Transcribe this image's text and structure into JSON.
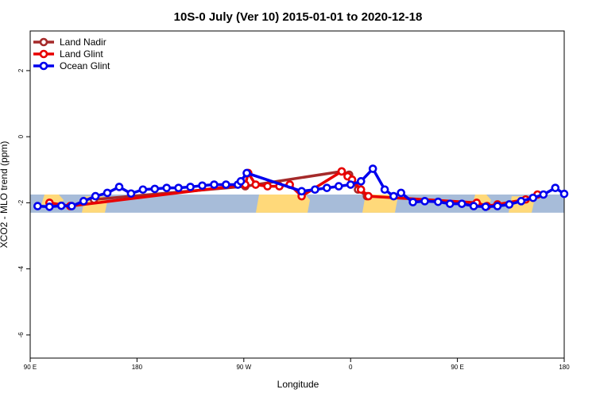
{
  "chart_data": {
    "type": "line",
    "title": "10S-0 July (Ver 10)   2015-01-01 to 2020-12-18",
    "xlabel": "Longitude",
    "ylabel": "XCO2 - MLO trend (ppm)",
    "xlim": [
      90,
      450
    ],
    "ylim": [
      -6.7,
      3.2
    ],
    "x_ticks": [
      {
        "value": 90,
        "label": "90 E"
      },
      {
        "value": 162,
        "label": "180"
      },
      {
        "value": 234,
        "label": "90 W"
      },
      {
        "value": 306,
        "label": "0"
      },
      {
        "value": 378,
        "label": "90 E"
      },
      {
        "value": 450,
        "label": "180"
      }
    ],
    "y_ticks": [
      2,
      0,
      -2,
      -4,
      -6
    ],
    "background_band": {
      "y_range": [
        -2.3,
        -1.75
      ],
      "ocean_color": "#a7bcd9",
      "land_color": "#ffd97a"
    },
    "legend_position": "top-left",
    "series": [
      {
        "name": "Land Nadir",
        "color": "#a52a2a",
        "x": [
          133,
          235,
          300,
          305,
          311,
          317
        ],
        "y": [
          -1.9,
          -1.5,
          -1.05,
          -1.15,
          -1.6,
          -1.8
        ]
      },
      {
        "name": "Land Glint",
        "color": "#e80000",
        "x": [
          103,
          117,
          235,
          237,
          242,
          250,
          258,
          265,
          273,
          300,
          304,
          307,
          313,
          318,
          391,
          398,
          405,
          424,
          432
        ],
        "y": [
          -2.0,
          -2.1,
          -1.45,
          -1.1,
          -1.45,
          -1.5,
          -1.5,
          -1.45,
          -1.8,
          -1.05,
          -1.2,
          -1.3,
          -1.6,
          -1.8,
          -2.0,
          -2.1,
          -2.05,
          -1.9,
          -1.75
        ]
      },
      {
        "name": "Ocean Glint",
        "color": "#0000ee",
        "x": [
          95,
          103,
          111,
          118,
          126,
          134,
          142,
          150,
          158,
          166,
          174,
          182,
          190,
          198,
          206,
          214,
          222,
          230,
          232,
          236,
          273,
          282,
          290,
          298,
          306,
          313,
          321,
          329,
          335,
          340,
          348,
          356,
          365,
          373,
          381,
          389,
          397,
          405,
          413,
          421,
          429,
          436,
          444,
          450
        ],
        "y": [
          -2.1,
          -2.12,
          -2.09,
          -2.1,
          -1.95,
          -1.8,
          -1.7,
          -1.52,
          -1.72,
          -1.6,
          -1.58,
          -1.55,
          -1.55,
          -1.52,
          -1.48,
          -1.45,
          -1.45,
          -1.45,
          -1.35,
          -1.1,
          -1.65,
          -1.6,
          -1.55,
          -1.5,
          -1.45,
          -1.35,
          -0.97,
          -1.6,
          -1.8,
          -1.7,
          -1.98,
          -1.95,
          -1.97,
          -2.03,
          -2.03,
          -2.1,
          -2.12,
          -2.1,
          -2.05,
          -1.95,
          -1.85,
          -1.75,
          -1.55,
          -1.73
        ]
      }
    ]
  }
}
